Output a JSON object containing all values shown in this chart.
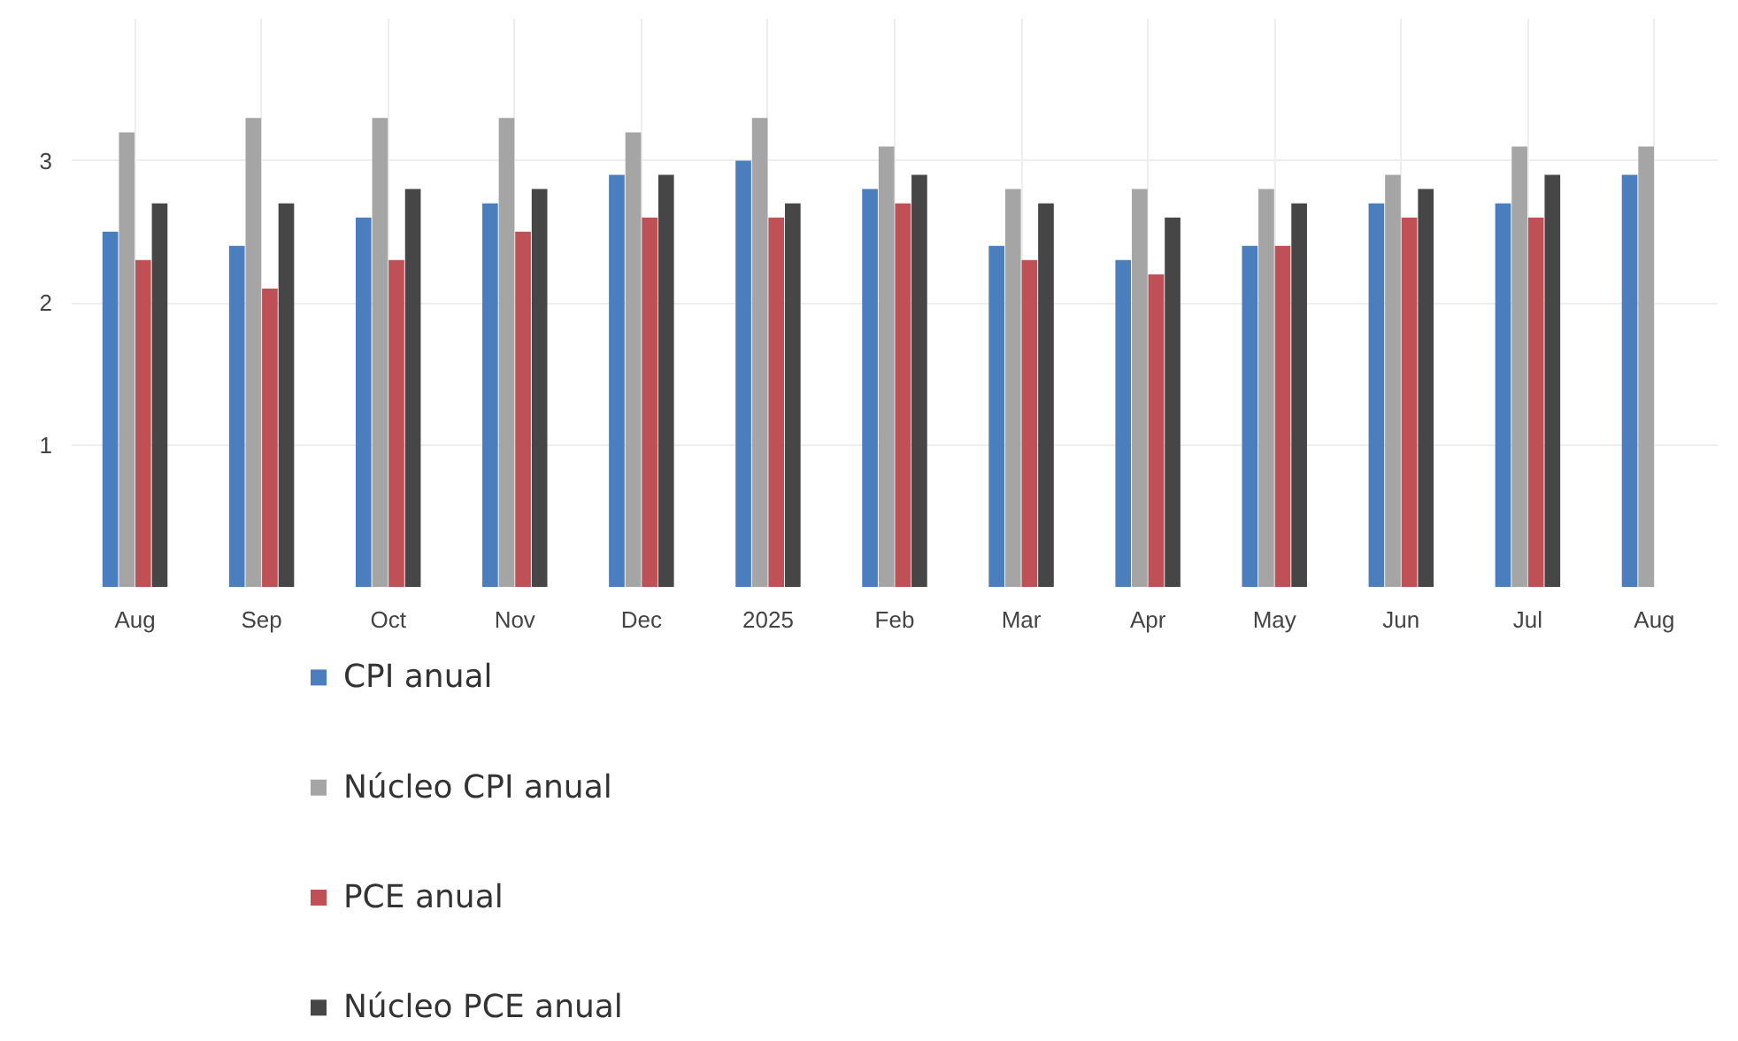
{
  "chart_data": {
    "type": "bar",
    "categories": [
      "Aug",
      "Sep",
      "Oct",
      "Nov",
      "Dec",
      "2025",
      "Feb",
      "Mar",
      "Apr",
      "May",
      "Jun",
      "Jul",
      "Aug"
    ],
    "series": [
      {
        "name": "CPI anual",
        "color": "#4a7ebf",
        "values": [
          2.5,
          2.4,
          2.6,
          2.7,
          2.9,
          3.0,
          2.8,
          2.4,
          2.3,
          2.4,
          2.7,
          2.7,
          2.9
        ]
      },
      {
        "name": "Núcleo CPI anual",
        "color": "#a5a5a5",
        "values": [
          3.2,
          3.3,
          3.3,
          3.3,
          3.2,
          3.3,
          3.1,
          2.8,
          2.8,
          2.8,
          2.9,
          3.1,
          3.1
        ]
      },
      {
        "name": "PCE anual",
        "color": "#bf5055",
        "values": [
          2.3,
          2.1,
          2.3,
          2.5,
          2.6,
          2.6,
          2.7,
          2.3,
          2.2,
          2.4,
          2.6,
          2.6,
          null
        ]
      },
      {
        "name": "Núcleo PCE anual",
        "color": "#464646",
        "values": [
          2.7,
          2.7,
          2.8,
          2.8,
          2.9,
          2.7,
          2.9,
          2.7,
          2.6,
          2.7,
          2.8,
          2.9,
          null
        ]
      }
    ],
    "ylim": [
      0,
      4
    ],
    "yticks": [
      1,
      2,
      3
    ],
    "grid": true,
    "legend": "bottom"
  }
}
